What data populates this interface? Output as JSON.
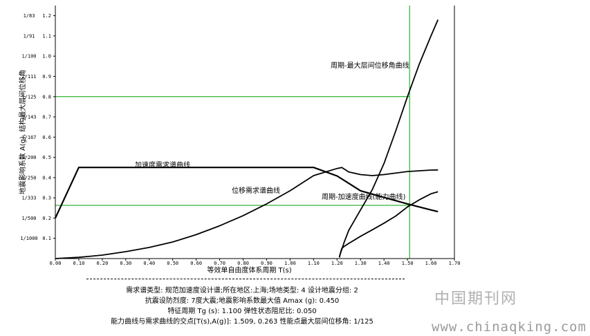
{
  "chart_data": {
    "type": "line",
    "xlabel": "等效单自由度体系周期 T(s)",
    "ylabel": "地震影响系数 A(g), 结构最大层间位移角",
    "xlim": [
      0,
      1.7
    ],
    "ylim": [
      0,
      1.25
    ],
    "x_ticks": [
      "0.00",
      "0.10",
      "0.20",
      "0.30",
      "0.40",
      "0.50",
      "0.60",
      "0.70",
      "0.80",
      "0.90",
      "1.00",
      "1.10",
      "1.20",
      "1.30",
      "1.40",
      "1.50",
      "1.60",
      "1.70"
    ],
    "y_ticks": [
      "0.1",
      "0.2",
      "0.3",
      "0.4",
      "0.5",
      "0.6",
      "0.7",
      "0.8",
      "0.9",
      "1.0",
      "1.1",
      "1.2"
    ],
    "y_ticks_drift": [
      "1/1000",
      "1/500",
      "1/333",
      "1/250",
      "1/200",
      "1/167",
      "1/143",
      "1/125",
      "1/111",
      "1/100",
      "1/91",
      "1/83"
    ],
    "series": [
      {
        "name": "加速度需求谱曲线",
        "x": [
          0.0,
          0.1,
          1.1,
          1.2,
          1.3,
          1.4,
          1.5,
          1.6,
          1.63
        ],
        "y": [
          0.2,
          0.45,
          0.45,
          0.408,
          0.335,
          0.302,
          0.27,
          0.24,
          0.232
        ]
      },
      {
        "name": "位移需求谱曲线",
        "x": [
          0.0,
          0.1,
          0.2,
          0.3,
          0.4,
          0.5,
          0.6,
          0.7,
          0.8,
          0.9,
          1.0,
          1.1,
          1.2,
          1.22,
          1.25,
          1.3,
          1.35,
          1.4,
          1.5,
          1.6,
          1.63
        ],
        "y": [
          0.0,
          0.006,
          0.017,
          0.034,
          0.055,
          0.082,
          0.118,
          0.162,
          0.212,
          0.27,
          0.335,
          0.41,
          0.445,
          0.45,
          0.428,
          0.415,
          0.41,
          0.415,
          0.43,
          0.437,
          0.438
        ]
      },
      {
        "name": "周期-加速度曲线(能力曲线)",
        "x": [
          1.21,
          1.215,
          1.22,
          1.23,
          1.25,
          1.3,
          1.35,
          1.4,
          1.45,
          1.5,
          1.55,
          1.6,
          1.63
        ],
        "y": [
          0.005,
          0.03,
          0.05,
          0.06,
          0.075,
          0.11,
          0.142,
          0.175,
          0.21,
          0.255,
          0.29,
          0.32,
          0.33
        ]
      },
      {
        "name": "周期-最大层间位移角曲线",
        "x": [
          1.21,
          1.23,
          1.25,
          1.3,
          1.35,
          1.4,
          1.45,
          1.5,
          1.55,
          1.6,
          1.63
        ],
        "y": [
          0.01,
          0.08,
          0.14,
          0.24,
          0.34,
          0.47,
          0.63,
          0.8,
          0.96,
          1.1,
          1.18
        ]
      }
    ],
    "reference_lines": {
      "x_vertical": 1.509,
      "y_horizontal": [
        0.263,
        0.8
      ]
    },
    "annotations": {
      "accel_demand": "加速度需求谱曲线",
      "disp_demand": "位移需求谱曲线",
      "capacity": "周期-加速度曲线(能力曲线)",
      "drift": "周期-最大层间位移角曲线"
    },
    "colors": {
      "curves": "#000000",
      "reference": "#00a000",
      "axes": "#000000"
    }
  },
  "info": {
    "line1": "需求谱类型: 规范加速度设计谱;所在地区:上海;场地类型: 4 设计地震分组: 2",
    "line2": "抗震设防烈度: 7度大震;地震影响系数最大值 Amax (g): 0.450",
    "line3": "特征周期 Tg (s): 1.100 弹性状态阻尼比: 0.050",
    "line4": "能力曲线与需求曲线的交点[T(s),A(g)]: 1.509, 0.263 性能点最大层间位移角: 1/125"
  },
  "watermark": {
    "cn": "中国期刊网",
    "url": "www.chinaqking.com"
  }
}
